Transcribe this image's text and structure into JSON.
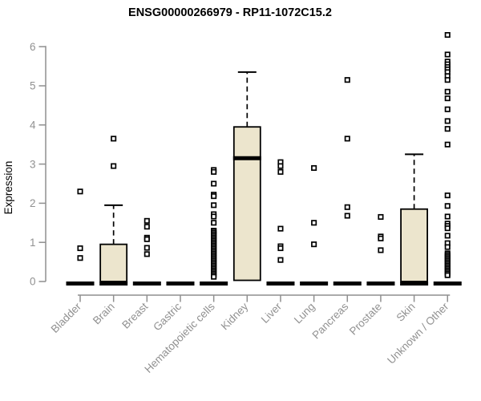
{
  "chart_data": {
    "type": "boxplot",
    "title": "ENSG00000266979 - RP11-1072C15.2",
    "xlabel": "",
    "ylabel": "Expression",
    "ylim": [
      0,
      6.4
    ],
    "yticks": [
      0,
      1,
      2,
      3,
      4,
      5,
      6
    ],
    "grid": false,
    "legend": "none",
    "categories": [
      "Bladder",
      "Brain",
      "Breast",
      "Gastric",
      "Hematopoietic cells",
      "Kidney",
      "Liver",
      "Lung",
      "Pancreas",
      "Prostate",
      "Skin",
      "Unknown / Other"
    ],
    "boxes": [
      {
        "category": "Bladder",
        "q1": 0,
        "median": 0,
        "q3": 0,
        "whisker_low": 0,
        "whisker_high": 0,
        "outliers": [
          2.3,
          0.85,
          0.6
        ]
      },
      {
        "category": "Brain",
        "q1": 0,
        "median": 0,
        "q3": 0.95,
        "whisker_low": 0,
        "whisker_high": 1.95,
        "outliers": [
          3.65,
          2.95
        ]
      },
      {
        "category": "Breast",
        "q1": 0,
        "median": 0,
        "q3": 0,
        "whisker_low": 0,
        "whisker_high": 0,
        "outliers": [
          1.55,
          1.4,
          1.12,
          1.08,
          0.86,
          0.7
        ]
      },
      {
        "category": "Gastric",
        "q1": 0,
        "median": 0,
        "q3": 0,
        "whisker_low": 0,
        "whisker_high": 0,
        "outliers": []
      },
      {
        "category": "Hematopoietic cells",
        "q1": 0,
        "median": 0,
        "q3": 0,
        "whisker_low": 0,
        "whisker_high": 0,
        "outliers": [
          2.85,
          2.8,
          2.5,
          2.22,
          2.18,
          1.95,
          1.72,
          1.66,
          1.5,
          1.3,
          1.28,
          1.24,
          1.2,
          1.16,
          1.12,
          1.08,
          1.04,
          1.0,
          0.96,
          0.92,
          0.88,
          0.84,
          0.8,
          0.76,
          0.72,
          0.68,
          0.64,
          0.6,
          0.56,
          0.52,
          0.48,
          0.44,
          0.4,
          0.36,
          0.32,
          0.28,
          0.24,
          0.2,
          0.16,
          0.12
        ]
      },
      {
        "category": "Kidney",
        "q1": 0.03,
        "median": 3.15,
        "q3": 3.95,
        "whisker_low": 0.03,
        "whisker_high": 5.35,
        "outliers": []
      },
      {
        "category": "Liver",
        "q1": 0,
        "median": 0,
        "q3": 0,
        "whisker_low": 0,
        "whisker_high": 0,
        "outliers": [
          3.05,
          2.95,
          2.8,
          1.35,
          0.9,
          0.85,
          0.55
        ]
      },
      {
        "category": "Lung",
        "q1": 0,
        "median": 0,
        "q3": 0,
        "whisker_low": 0,
        "whisker_high": 0,
        "outliers": [
          2.9,
          1.5,
          0.95
        ]
      },
      {
        "category": "Pancreas",
        "q1": 0,
        "median": 0,
        "q3": 0,
        "whisker_low": 0,
        "whisker_high": 0,
        "outliers": [
          5.15,
          3.65,
          1.9,
          1.68
        ]
      },
      {
        "category": "Prostate",
        "q1": 0,
        "median": 0,
        "q3": 0,
        "whisker_low": 0,
        "whisker_high": 0,
        "outliers": [
          1.65,
          1.15,
          1.1,
          0.8
        ]
      },
      {
        "category": "Skin",
        "q1": 0,
        "median": 0,
        "q3": 1.85,
        "whisker_low": 0,
        "whisker_high": 3.25,
        "outliers": []
      },
      {
        "category": "Unknown / Other",
        "q1": 0,
        "median": 0,
        "q3": 0,
        "whisker_low": 0,
        "whisker_high": 0,
        "outliers": [
          6.3,
          5.8,
          5.62,
          5.55,
          5.48,
          5.42,
          5.35,
          5.25,
          5.15,
          4.85,
          4.68,
          4.4,
          4.1,
          3.9,
          3.5,
          2.2,
          1.93,
          1.66,
          1.48,
          1.42,
          1.36,
          1.17,
          0.98,
          0.88,
          0.72,
          0.68,
          0.64,
          0.6,
          0.56,
          0.52,
          0.48,
          0.44,
          0.4,
          0.36,
          0.32,
          0.28,
          0.24,
          0.2,
          0.16
        ]
      }
    ],
    "colors": {
      "box_fill": "#ECE5CD",
      "box_border": "#000000",
      "median": "#000000",
      "whisker": "#000000",
      "outlier": "#000000",
      "axis": "#8F8F8F",
      "tick_label": "#919191",
      "title": "#000000",
      "background": "#FFFFFF"
    }
  }
}
